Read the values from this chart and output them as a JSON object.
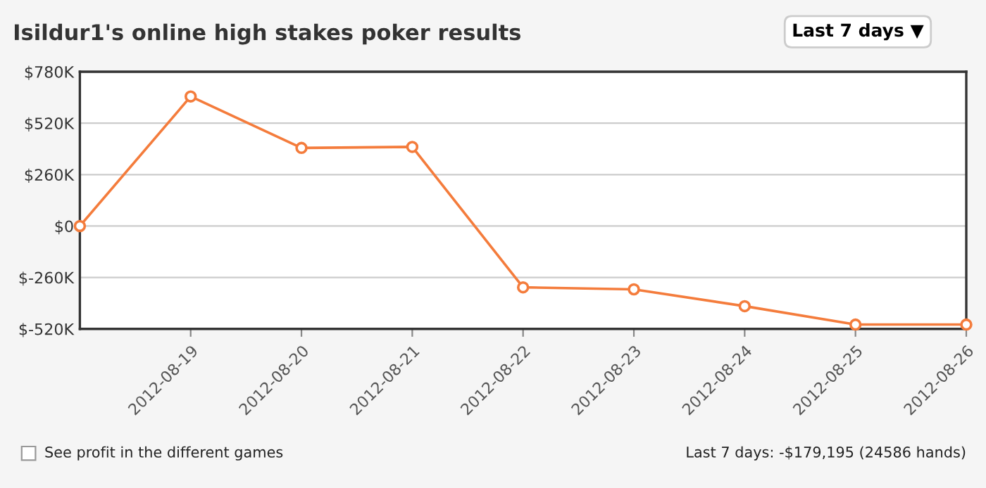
{
  "chart_data": {
    "type": "line",
    "title": "Isildur1's online high stakes poker results",
    "x": [
      "2012-08-18",
      "2012-08-19",
      "2012-08-20",
      "2012-08-21",
      "2012-08-22",
      "2012-08-23",
      "2012-08-24",
      "2012-08-25",
      "2012-08-26"
    ],
    "series": [
      {
        "color": "#f47c3c",
        "values": [
          0,
          655000,
          395000,
          400000,
          -310000,
          -320000,
          -405000,
          -498000,
          -498000
        ]
      }
    ],
    "xlim": [
      "2012-08-18",
      "2012-08-26"
    ],
    "xticks": [
      "2012-08-19",
      "2012-08-20",
      "2012-08-21",
      "2012-08-22",
      "2012-08-23",
      "2012-08-24",
      "2012-08-25",
      "2012-08-26"
    ],
    "ylim": [
      -520000,
      780000
    ],
    "yticks": [
      {
        "value": -520000,
        "label": "$-520K"
      },
      {
        "value": -260000,
        "label": "$-260K"
      },
      {
        "value": 0,
        "label": "$0"
      },
      {
        "value": 260000,
        "label": "$260K"
      },
      {
        "value": 520000,
        "label": "$520K"
      },
      {
        "value": 780000,
        "label": "$780K"
      }
    ],
    "grid": "y",
    "marker": "circle",
    "line_style": "solid",
    "annotations": [
      "Last 7 days ▼",
      "See profit in the different games",
      "Last 7 days: -$179,195 (24586 hands)"
    ]
  }
}
